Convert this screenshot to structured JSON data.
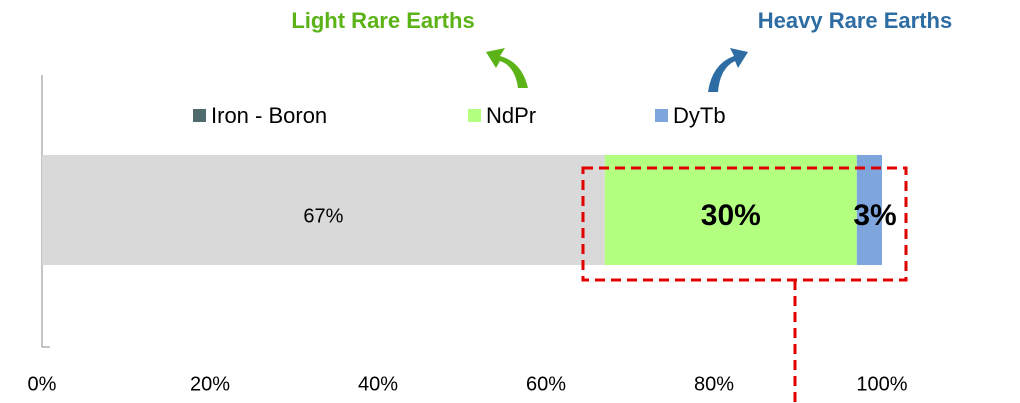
{
  "chart_data": {
    "type": "stacked_bar_horizontal",
    "annotations": [
      "Light Rare Earths",
      "Heavy Rare Earths"
    ],
    "series": [
      {
        "name": "Iron - Boron",
        "color": "#d9d9d9",
        "swatch_color": "#4f6b6b",
        "values": [
          67
        ],
        "value_labels": [
          "67%"
        ]
      },
      {
        "name": "NdPr",
        "color": "#b3ff80",
        "swatch_color": "#b3ff80",
        "values": [
          30
        ],
        "value_labels": [
          "30%"
        ]
      },
      {
        "name": "DyTb",
        "color": "#7ea6dc",
        "swatch_color": "#7ea6dc",
        "values": [
          3
        ],
        "value_labels": [
          "3%"
        ]
      }
    ],
    "xlim": [
      0,
      100
    ],
    "xticks": [
      {
        "value": 0,
        "label": "0%"
      },
      {
        "value": 20,
        "label": "20%"
      },
      {
        "value": 40,
        "label": "40%"
      },
      {
        "value": 60,
        "label": "60%"
      },
      {
        "value": 80,
        "label": "80%"
      },
      {
        "value": 100,
        "label": "100%"
      }
    ],
    "legend": "top"
  }
}
